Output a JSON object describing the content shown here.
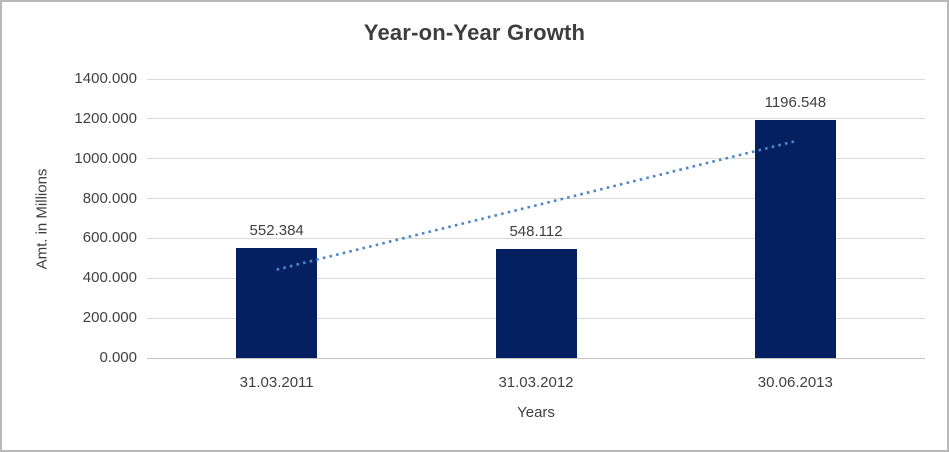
{
  "chart_data": {
    "type": "bar",
    "title": "Year-on-Year Growth",
    "xlabel": "Years",
    "ylabel": "Amt. in Millions",
    "categories": [
      "31.03.2011",
      "31.03.2012",
      "30.06.2013"
    ],
    "values": [
      552.384,
      548.112,
      1196.548
    ],
    "data_labels": [
      "552.384",
      "548.112",
      "1196.548"
    ],
    "y_ticks": [
      "1400.000",
      "1200.000",
      "1000.000",
      "800.000",
      "600.000",
      "400.000",
      "200.000",
      "0.000"
    ],
    "ylim": [
      0,
      1400
    ],
    "y_tick_step": 200,
    "grid": true,
    "legend": "none",
    "trendline": {
      "type": "linear",
      "style": "dotted",
      "fit_endpoints": [
        443.6,
        1087.8
      ]
    },
    "colors": {
      "bar": "#042061",
      "trendline": "#4e86c8",
      "gridline": "#d9d9d9",
      "axis_line": "#c3c3c3",
      "text": "#404040",
      "title_text": "#3d3d3d",
      "frame_border": "#b9b9b9",
      "background": "#ffffff"
    }
  }
}
